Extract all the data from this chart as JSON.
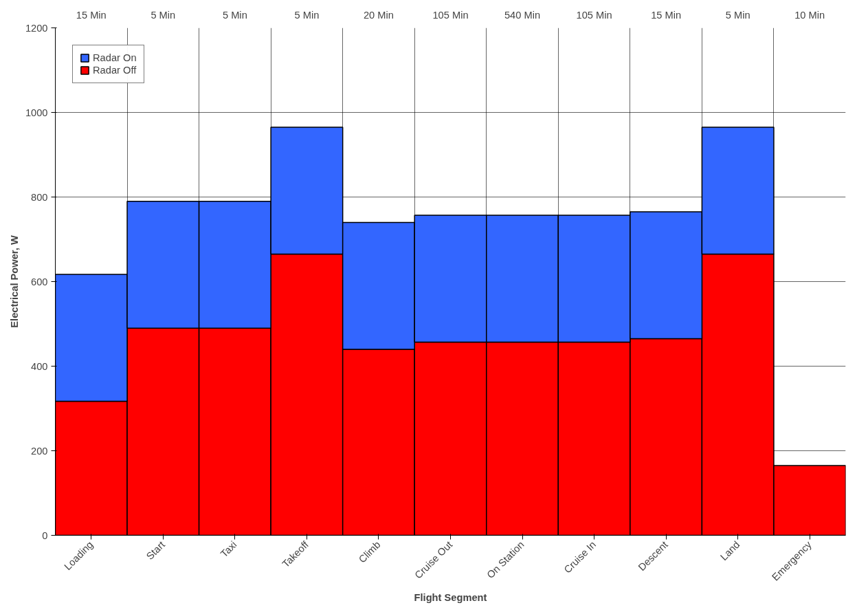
{
  "chart_data": {
    "type": "bar",
    "stacked": true,
    "xlabel": "Flight Segment",
    "ylabel": "Electrical Power, W",
    "categories": [
      "Loading",
      "Start",
      "Taxi",
      "Takeoff",
      "Climb",
      "Cruise Out",
      "On Station",
      "Cruise In",
      "Descent",
      "Land",
      "Emergency"
    ],
    "series": [
      {
        "name": "Radar Off",
        "color": "#ff0000",
        "values": [
          317,
          490,
          490,
          665,
          440,
          457,
          457,
          457,
          465,
          665,
          165
        ]
      },
      {
        "name": "Radar On",
        "color": "#3366ff",
        "values": [
          300,
          300,
          300,
          300,
          300,
          300,
          300,
          300,
          300,
          300,
          null
        ]
      }
    ],
    "ylim": [
      0,
      1200
    ],
    "yticks": [
      0,
      200,
      400,
      600,
      800,
      1000,
      1200
    ],
    "annotations": [
      "15 Min",
      "5 Min",
      "5 Min",
      "5 Min",
      "20 Min",
      "105 Min",
      "540 Min",
      "105 Min",
      "15 Min",
      "5 Min",
      "10 Min"
    ],
    "grid": true,
    "legend": "top left"
  }
}
